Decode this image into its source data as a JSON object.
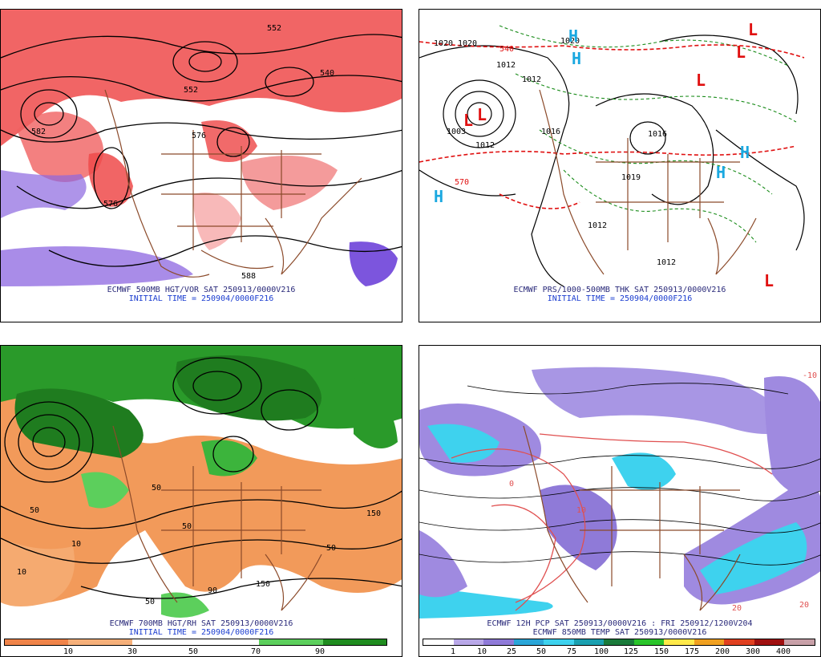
{
  "panels": [
    {
      "caption": "ECMWF 500MB HGT/VOR SAT 250913/0000V216",
      "init": "INITIAL TIME = 250904/0000F216",
      "labels": [
        "552",
        "552",
        "540",
        "576",
        "582",
        "576",
        "588"
      ]
    },
    {
      "caption": "ECMWF PRS/1000-500MB THK SAT 250913/0000V216",
      "init": "INITIAL TIME = 250904/0000F216",
      "labels": [
        "1020",
        "1020",
        "1020",
        "1012",
        "1012",
        "1003",
        "1012",
        "1016",
        "1016",
        "1019",
        "1012",
        "570",
        "540",
        "1012"
      ]
    },
    {
      "caption": "ECMWF 700MB HGT/RH SAT 250913/0000V216",
      "init": "INITIAL TIME = 250904/0000F216",
      "labels": [
        "50",
        "10",
        "50",
        "50",
        "150",
        "50",
        "90",
        "10",
        "150",
        "50"
      ]
    },
    {
      "caption": "ECMWF 12H PCP SAT 250913/0000V216 : FRI 250912/1200V204",
      "init": "ECMWF 850MB TEMP SAT 250913/0000V216",
      "labels": [
        "-10",
        "0",
        "10",
        "20",
        "20"
      ]
    }
  ],
  "rh_legend": {
    "ticks": [
      "10",
      "30",
      "50",
      "70",
      "90"
    ],
    "colors": [
      "#f0844a",
      "#f6b07a",
      "#ffffff",
      "#ffffff",
      "#5ccf5c",
      "#1f8c1f"
    ]
  },
  "pcp_legend": {
    "ticks": [
      "1",
      "10",
      "25",
      "50",
      "75",
      "100",
      "125",
      "150",
      "175",
      "200",
      "300",
      "400"
    ],
    "colors": [
      "#ffffff",
      "#b9a8e8",
      "#8f7ad8",
      "#2aa6d8",
      "#3ed2ee",
      "#1aa0b0",
      "#1a7a3a",
      "#2ac42a",
      "#ffe94a",
      "#f0a020",
      "#e04020",
      "#a01010",
      "#c8a0a8"
    ]
  },
  "markers": {
    "high": "H",
    "low": "L"
  }
}
